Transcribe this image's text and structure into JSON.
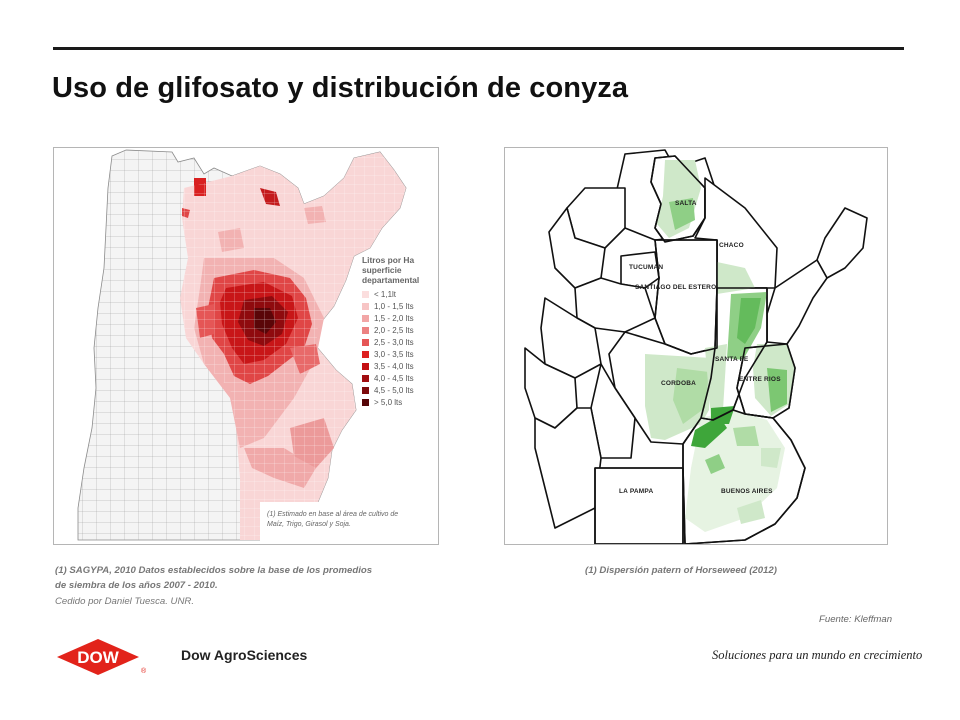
{
  "slide": {
    "title": "Uso de glifosato y distribución de conyza"
  },
  "left_map": {
    "legend": {
      "title_lines": [
        "Litros por Ha",
        "superficie",
        "departamental"
      ],
      "items": [
        {
          "label": "< 1,1lt",
          "color": "#fbdede"
        },
        {
          "label": "1,0 - 1,5 lts",
          "color": "#f7c5c5"
        },
        {
          "label": "1,5 - 2,0 lts",
          "color": "#f2a6a6"
        },
        {
          "label": "2,0 - 2,5 lts",
          "color": "#ec8282"
        },
        {
          "label": "2,5 - 3,0 lts",
          "color": "#e55656"
        },
        {
          "label": "3,0 - 3,5 lts",
          "color": "#dd2020"
        },
        {
          "label": "3,5 - 4,0 lts",
          "color": "#c40f12"
        },
        {
          "label": "4,0 - 4,5 lts",
          "color": "#a10d10"
        },
        {
          "label": "4,5 - 5,0 lts",
          "color": "#7d0a0c"
        },
        {
          "label": "> 5,0 lts",
          "color": "#560507"
        }
      ]
    },
    "note_lines": [
      "(1) Estimado en base al área de cultivo de",
      "Maíz, Trigo, Girasol y Soja."
    ]
  },
  "right_map": {
    "labels": {
      "salta": "SALTA",
      "chaco": "CHACO",
      "tucuman": "TUCUMAN",
      "santiago": "SANTIAGO DEL ESTERO",
      "santa_fe": "SANTA FE",
      "cordoba": "CORDOBA",
      "entre_rios": "ENTRE RIOS",
      "la_pampa": "LA PAMPA",
      "buenos_aires": "BUENOS AIRES"
    },
    "colors": {
      "light": "#cfe8c9",
      "medium": "#8fcf86",
      "dark": "#3ea63a"
    }
  },
  "captions": {
    "left_lines": [
      "(1) SAGYPA, 2010 Datos establecidos sobre la base de los promedios",
      "de siembra de los años 2007 - 2010."
    ],
    "left_sub": "Cedido por Daniel Tuesca. UNR.",
    "right": "(1) Dispersión patern of Horseweed (2012)",
    "source": "Fuente: Kleffman"
  },
  "footer": {
    "logo_text": "DOW",
    "logo_mark": "®",
    "company": "Dow AgroSciences",
    "slogan": "Soluciones para un mundo en crecimiento",
    "brand_color": "#e2231a"
  }
}
